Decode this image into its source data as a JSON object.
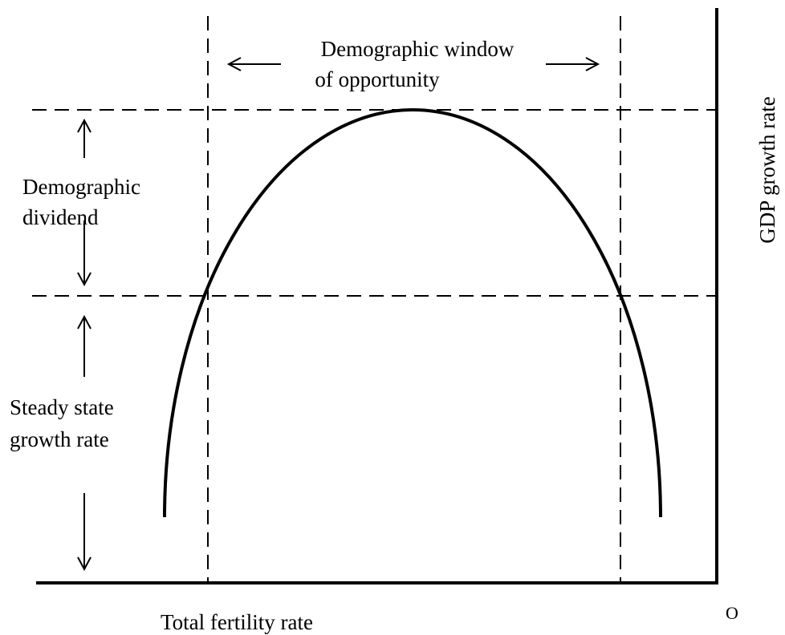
{
  "title": {
    "lines": [
      "Demographic window",
      "of opportunity"
    ]
  },
  "labels": {
    "dividend": [
      "Demographic",
      "dividend"
    ],
    "steady": [
      "Steady state",
      "growth rate"
    ],
    "y_axis": "GDP growth rate",
    "x_axis": "Total fertility rate",
    "origin": "O"
  }
}
